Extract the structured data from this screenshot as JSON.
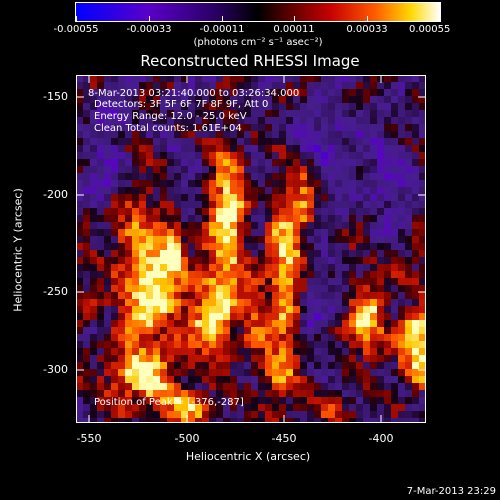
{
  "colorbar": {
    "ticks": [
      "-0.00055",
      "-0.00033",
      "-0.00011",
      "0.00011",
      "0.00033",
      "0.00055"
    ],
    "units": "(photons cm⁻² s⁻¹ asec⁻²)"
  },
  "title": "Reconstructed RHESSI Image",
  "info": {
    "time_range": "8-Mar-2013 03:21:40.000 to 03:26:34.000",
    "detectors": "Detectors: 3F 5F 6F 7F 8F 9F, Att 0",
    "energy": "Energy Range: 12.0 - 25.0 keV",
    "clean": "Clean     Total counts: 1.61E+04",
    "peak": "Position of Peak = [-376,-287]"
  },
  "axes": {
    "xlabel": "Heliocentric X (arcsec)",
    "ylabel": "Heliocentric Y (arcsec)",
    "xticks": [
      "-550",
      "-500",
      "-450",
      "-400"
    ],
    "yticks": [
      "-150",
      "-200",
      "-250",
      "-300"
    ]
  },
  "timestamp": "7-Mar-2013 23:29",
  "colors": {
    "background": "#000000",
    "text": "#ffffff"
  }
}
